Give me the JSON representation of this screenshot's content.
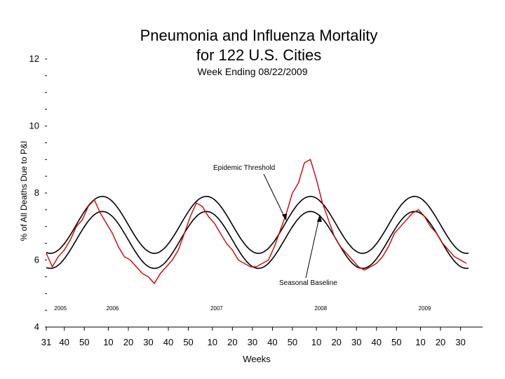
{
  "chart_data": {
    "type": "line",
    "title_line1": "Pneumonia and Influenza Mortality",
    "title_line2": "for 122 U.S. Cities",
    "subtitle": "Week Ending 08/22/2009",
    "xlabel": "Weeks",
    "ylabel": "% of All Deaths Due to P&I",
    "ylim": [
      4,
      12
    ],
    "y_ticks": [
      "4",
      "6",
      "8",
      "10",
      "12"
    ],
    "x_tick_labels": [
      "31",
      "40",
      "50",
      "10",
      "20",
      "30",
      "40",
      "50",
      "10",
      "20",
      "30",
      "40",
      "50",
      "10",
      "20",
      "30",
      "40",
      "50",
      "10",
      "20",
      "30"
    ],
    "x_ticks_week_index": [
      0,
      9,
      19,
      31,
      41,
      51,
      61,
      71,
      83,
      93,
      103,
      113,
      123,
      135,
      145,
      155,
      165,
      175,
      187,
      197,
      207
    ],
    "year_labels": [
      "2005",
      "2006",
      "2007",
      "2008",
      "2009"
    ],
    "year_label_week_index": [
      4,
      30,
      82,
      134,
      186
    ],
    "week_count": 212,
    "annotations": {
      "epidemic_threshold": "Epidemic Threshold",
      "seasonal_baseline": "Seasonal Baseline"
    },
    "series": [
      {
        "name": "Epidemic Threshold",
        "style": "black smooth line",
        "color": "#000000",
        "model": {
          "mean": 7.05,
          "amplitude": 0.85,
          "period_weeks": 52,
          "peak_week": 28
        }
      },
      {
        "name": "Seasonal Baseline",
        "style": "black smooth line",
        "color": "#000000",
        "model": {
          "mean": 6.6,
          "amplitude": 0.85,
          "period_weeks": 52,
          "peak_week": 28
        }
      },
      {
        "name": "% P&I Deaths",
        "style": "red observed line",
        "color": "#cc0000",
        "x_week_index": [
          0,
          3,
          6,
          9,
          12,
          15,
          18,
          21,
          24,
          27,
          30,
          33,
          36,
          39,
          42,
          45,
          48,
          51,
          54,
          57,
          60,
          63,
          66,
          69,
          72,
          75,
          78,
          81,
          84,
          87,
          90,
          93,
          96,
          99,
          102,
          105,
          108,
          111,
          114,
          117,
          120,
          123,
          126,
          129,
          132,
          135,
          138,
          141,
          144,
          147,
          150,
          153,
          156,
          159,
          162,
          165,
          168,
          171,
          174,
          177,
          180,
          183,
          186,
          189,
          192,
          195,
          198,
          201,
          204,
          207,
          210
        ],
        "values": [
          6.2,
          5.8,
          6.1,
          6.3,
          6.6,
          7.0,
          7.2,
          7.6,
          7.8,
          7.4,
          7.1,
          6.8,
          6.4,
          6.1,
          6.0,
          5.8,
          5.6,
          5.5,
          5.3,
          5.6,
          5.8,
          6.0,
          6.3,
          6.8,
          7.3,
          7.7,
          7.6,
          7.3,
          7.1,
          6.8,
          6.5,
          6.3,
          6.0,
          5.9,
          5.8,
          5.8,
          5.9,
          6.0,
          6.4,
          6.9,
          7.4,
          8.0,
          8.3,
          8.9,
          9.0,
          8.4,
          7.7,
          7.2,
          6.7,
          6.4,
          6.2,
          6.0,
          5.8,
          5.7,
          5.8,
          5.9,
          6.1,
          6.4,
          6.8,
          7.0,
          7.2,
          7.4,
          7.5,
          7.3,
          7.0,
          6.8,
          6.5,
          6.3,
          6.1,
          6.0,
          5.9
        ]
      }
    ]
  }
}
